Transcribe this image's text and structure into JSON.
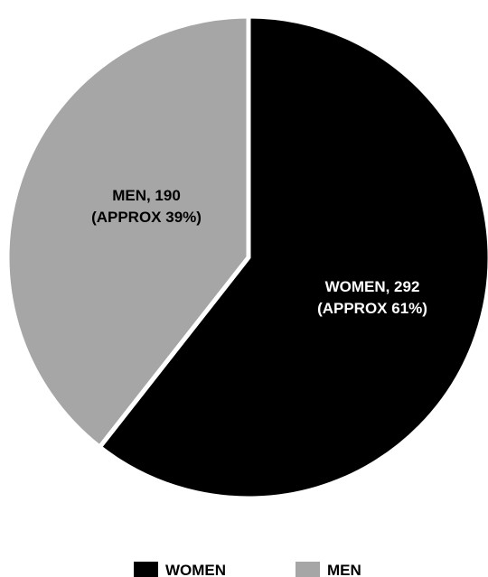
{
  "chart_data": {
    "type": "pie",
    "title": "",
    "slices": [
      {
        "name": "WOMEN",
        "value": 292,
        "percent_label": "(APPROX 61%)",
        "label": "WOMEN, 292",
        "color": "#000000",
        "label_color": "#ffffff"
      },
      {
        "name": "MEN",
        "value": 190,
        "percent_label": "(APPROX 39%)",
        "label": "MEN, 190",
        "color": "#a6a6a6",
        "label_color": "#000000"
      }
    ],
    "legend": {
      "placement": "bottom",
      "entries": [
        "WOMEN",
        "MEN"
      ]
    }
  }
}
